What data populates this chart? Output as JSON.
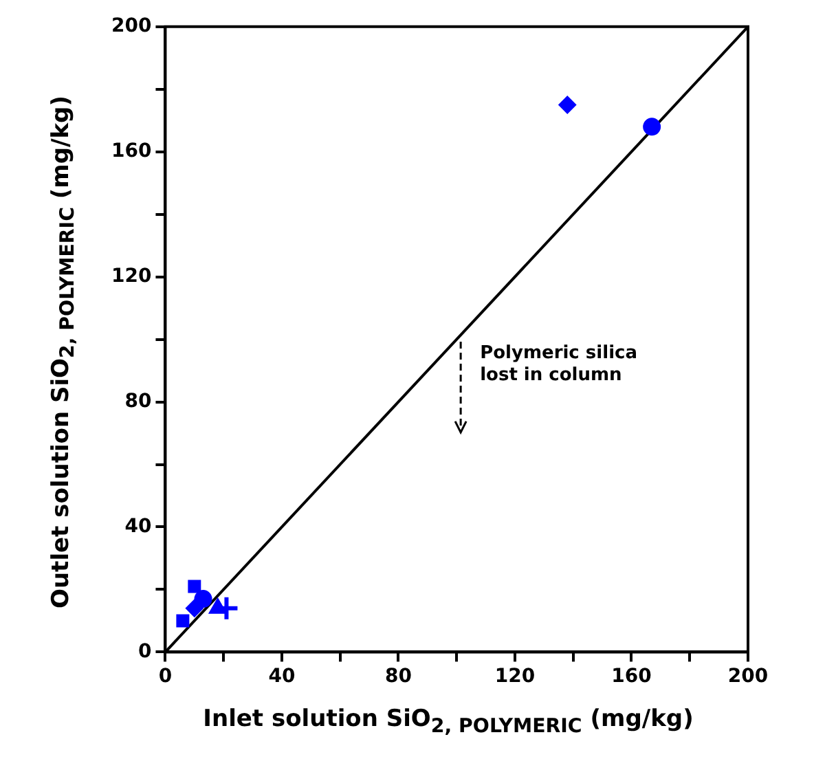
{
  "chart_data": {
    "type": "scatter",
    "xlabel": "Inlet solution SiO$_{2, POLYMERIC}$ (mg/kg)",
    "ylabel": "Outlet solution SiO$_{2, POLYMERIC}$ (mg/kg)",
    "xlim": [
      0,
      200
    ],
    "ylim": [
      0,
      200
    ],
    "xticks": [
      0,
      {
        "value": 20,
        "label": null
      },
      40,
      {
        "value": 60,
        "label": null
      },
      80,
      {
        "value": 100,
        "label": null
      },
      120,
      {
        "value": 140,
        "label": null
      },
      160,
      {
        "value": 180,
        "label": null
      },
      200
    ],
    "yticks": [
      0,
      {
        "value": 20,
        "label": null
      },
      40,
      {
        "value": 60,
        "label": null
      },
      80,
      {
        "value": 100,
        "label": null
      },
      120,
      {
        "value": 140,
        "label": null
      },
      160,
      {
        "value": 180,
        "label": null
      },
      200
    ],
    "grid": false,
    "legend": false,
    "annotations": [
      "Polymeric silica\nlost in column"
    ],
    "series": [
      {
        "type": "line",
        "color": "#000000",
        "marker": "none",
        "x": [
          0,
          200
        ],
        "values": [
          0,
          200
        ]
      },
      {
        "color": "#0000ff",
        "marker": "square",
        "x": [
          6
        ],
        "values": [
          10
        ]
      },
      {
        "color": "#0000ff",
        "marker": "diamond",
        "x": [
          10
        ],
        "values": [
          14
        ]
      },
      {
        "color": "#0000ff",
        "marker": "circle",
        "x": [
          13
        ],
        "values": [
          17
        ]
      },
      {
        "color": "#0000ff",
        "marker": "square",
        "x": [
          10
        ],
        "values": [
          21
        ]
      },
      {
        "color": "#0000ff",
        "marker": "triangle",
        "x": [
          18
        ],
        "values": [
          14
        ]
      },
      {
        "color": "#0000ff",
        "marker": "cross",
        "x": [
          21
        ],
        "values": [
          14
        ]
      },
      {
        "color": "#0000ff",
        "marker": "diamond",
        "x": [
          138
        ],
        "values": [
          175
        ]
      },
      {
        "color": "#0000ff",
        "marker": "circle",
        "x": [
          167
        ],
        "values": [
          168
        ]
      }
    ]
  }
}
